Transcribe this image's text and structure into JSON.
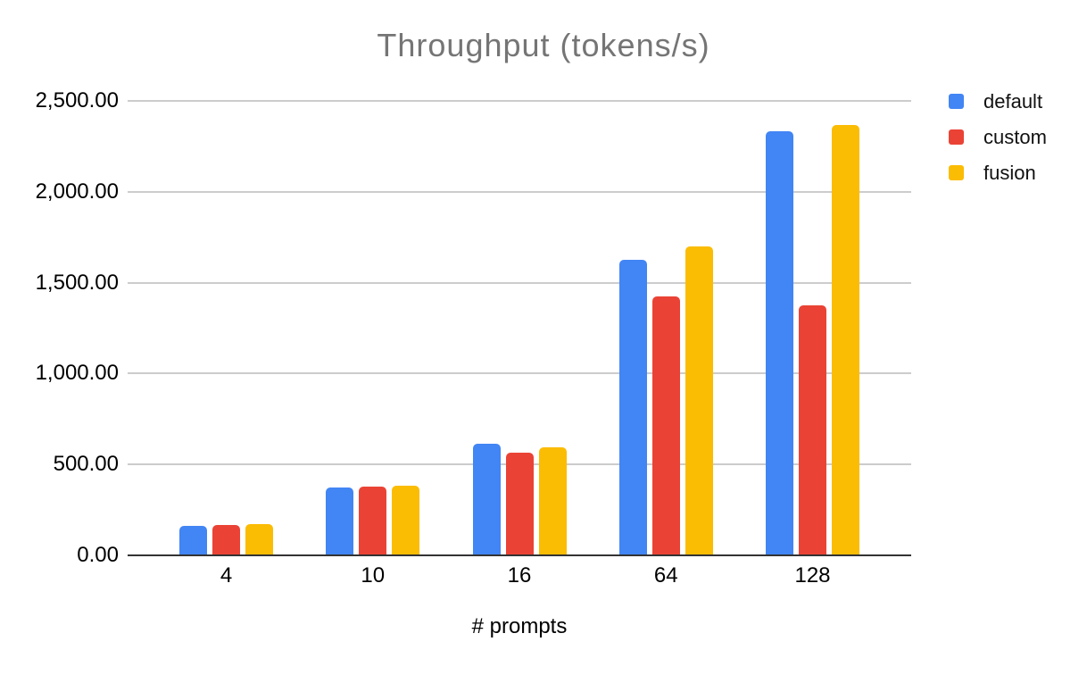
{
  "chart_data": {
    "type": "bar",
    "title": "Throughput (tokens/s)",
    "xlabel": "# prompts",
    "ylabel": "",
    "categories": [
      "4",
      "10",
      "16",
      "64",
      "128"
    ],
    "series": [
      {
        "name": "default",
        "color": "#4285F4",
        "values": [
          160,
          373,
          612,
          1626,
          2333
        ]
      },
      {
        "name": "custom",
        "color": "#EA4335",
        "values": [
          165,
          378,
          565,
          1424,
          1375
        ]
      },
      {
        "name": "fusion",
        "color": "#FBBC04",
        "values": [
          172,
          383,
          593,
          1700,
          2368
        ]
      }
    ],
    "ylim": [
      0,
      2500
    ],
    "y_tick_labels": [
      "0.00",
      "500.00",
      "1,000.00",
      "1,500.00",
      "2,000.00",
      "2,500.00"
    ],
    "y_tick_values": [
      0,
      500,
      1000,
      1500,
      2000,
      2500
    ],
    "grid": true,
    "legend_position": "right-top"
  }
}
